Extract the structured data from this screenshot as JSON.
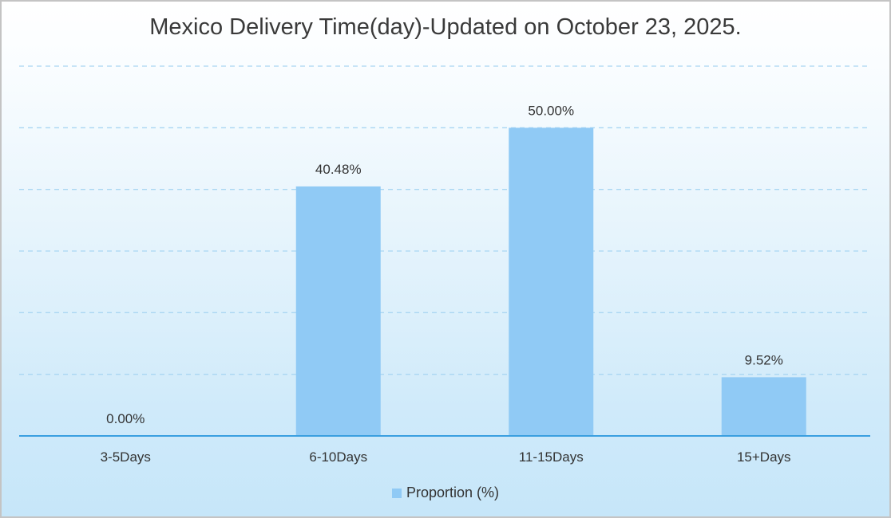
{
  "chart_data": {
    "type": "bar",
    "title": "Mexico Delivery Time(day)-Updated on October 23, 2025.",
    "categories": [
      "3-5Days",
      "6-10Days",
      "11-15Days",
      "15+Days"
    ],
    "series": [
      {
        "name": "Proportion (%)",
        "values": [
          0.0,
          40.48,
          50.0,
          9.52
        ],
        "labels": [
          "0.00%",
          "40.48%",
          "50.00%",
          "9.52%"
        ]
      }
    ],
    "ylim": [
      0,
      60
    ],
    "y_gridlines": [
      10,
      20,
      30,
      40,
      50,
      60
    ],
    "grid": true,
    "legend_position": "bottom",
    "colors": {
      "bar": "#90caf5",
      "axis": "#3a9fe0",
      "grid": "#a9d6f2"
    }
  }
}
